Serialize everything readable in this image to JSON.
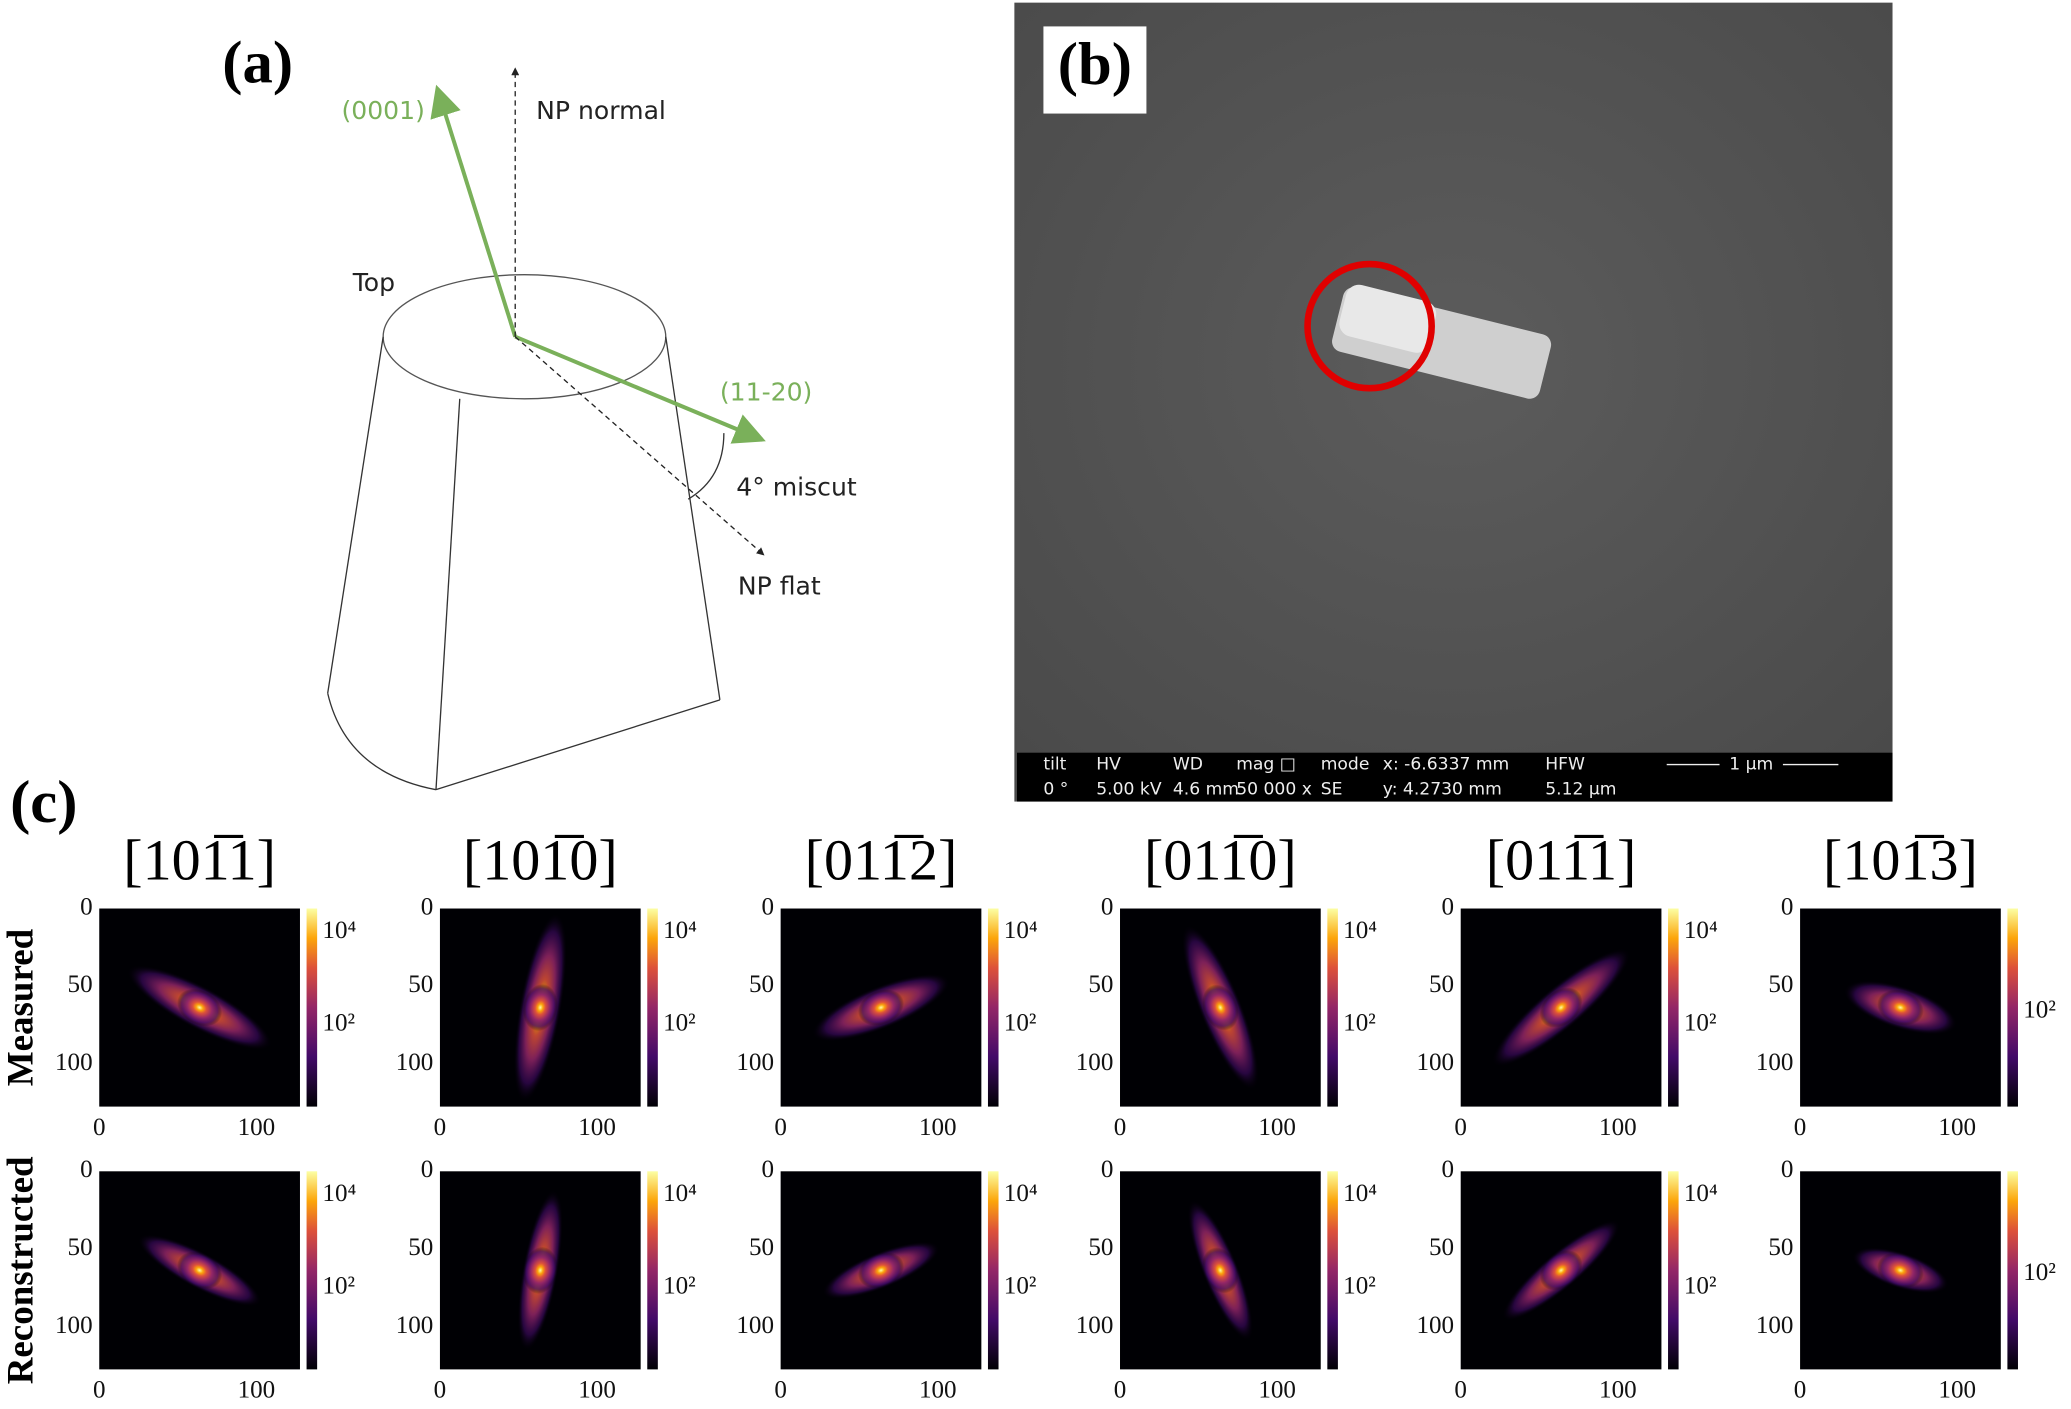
{
  "panel_a": {
    "label": "(a)",
    "annotations": {
      "c_axis": "(0001)",
      "np_normal": "NP normal",
      "top": "Top",
      "a_axis": "(11-20)",
      "miscut": "4° miscut",
      "np_flat": "NP flat"
    }
  },
  "panel_b": {
    "label": "(b)",
    "info_bar": {
      "header": [
        "tilt",
        "HV",
        "WD",
        "mag □",
        "mode",
        "x: -6.6337 mm",
        "HFW"
      ],
      "values": [
        "0 °",
        "5.00 kV",
        "4.6 mm",
        "50 000 x",
        "SE",
        "y: 4.2730 mm",
        "5.12 μm"
      ],
      "scale_bar": "1 μm"
    }
  },
  "panel_c": {
    "label": "(c)",
    "row_labels": [
      "Measured",
      "Reconstructed"
    ],
    "columns": [
      {
        "title": "[101̅1]",
        "colorbar_ticks": [
          "10⁴",
          "10²"
        ]
      },
      {
        "title": "[101̅0]",
        "colorbar_ticks": [
          "10⁴",
          "10²"
        ]
      },
      {
        "title": "[011̅2]",
        "colorbar_ticks": [
          "10⁴",
          "10²"
        ]
      },
      {
        "title": "[011̅0]",
        "colorbar_ticks": [
          "10⁴",
          "10²"
        ]
      },
      {
        "title": "[011̅1]",
        "colorbar_ticks": [
          "10⁴",
          "10²"
        ]
      },
      {
        "title": "[101̅3]",
        "colorbar_ticks": [
          "10²"
        ]
      }
    ],
    "y_ticks": [
      "0",
      "50",
      "100"
    ],
    "x_ticks": [
      "0",
      "100"
    ]
  }
}
